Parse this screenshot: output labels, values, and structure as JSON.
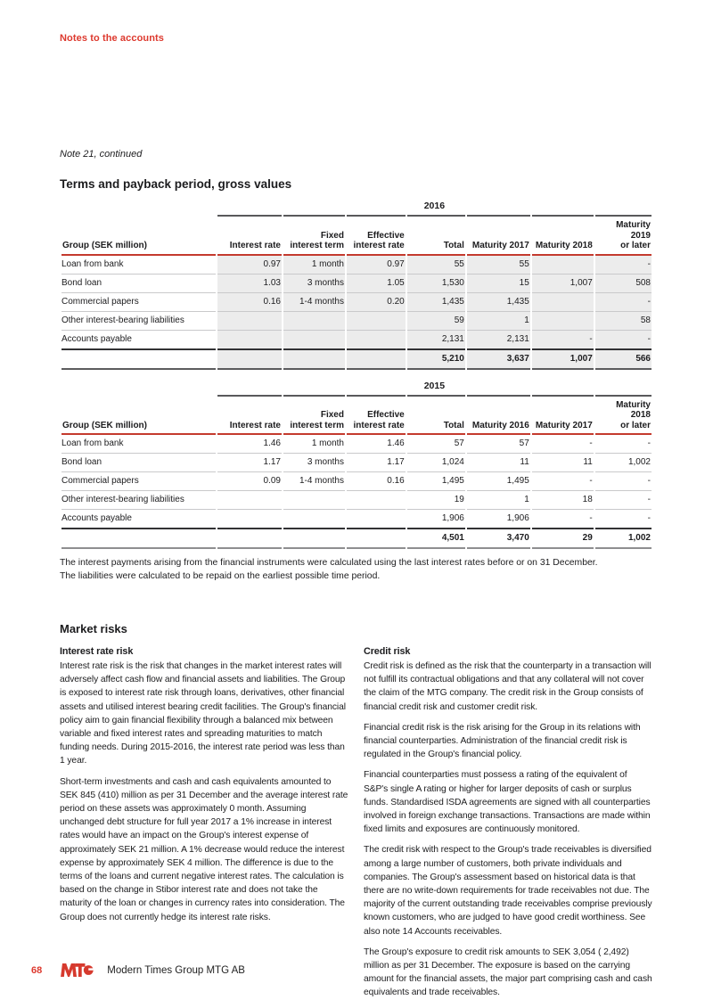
{
  "doc": {
    "header": "Notes to the accounts",
    "note_title": "Note 21, continued",
    "section_title": "Terms and payback period, gross values"
  },
  "tables": [
    {
      "year": "2016",
      "shaded": true,
      "headers": [
        [
          "Group (SEK million)"
        ],
        [
          "Interest rate"
        ],
        [
          "Fixed",
          "interest term"
        ],
        [
          "Effective",
          "interest rate"
        ],
        [
          "Total"
        ],
        [
          "Maturity 2017"
        ],
        [
          "Maturity 2018"
        ],
        [
          "Maturity 2019",
          "or later"
        ]
      ],
      "rows": [
        [
          "Loan from bank",
          "0.97",
          "1 month",
          "0.97",
          "55",
          "55",
          "",
          "-"
        ],
        [
          "Bond loan",
          "1.03",
          "3 months",
          "1.05",
          "1,530",
          "15",
          "1,007",
          "508"
        ],
        [
          "Commercial papers",
          "0.16",
          "1-4 months",
          "0.20",
          "1,435",
          "1,435",
          "",
          "-"
        ],
        [
          "Other interest-bearing liabilities",
          "",
          "",
          "",
          "59",
          "1",
          "",
          "58"
        ],
        [
          "Accounts payable",
          "",
          "",
          "",
          "2,131",
          "2,131",
          "-",
          "-"
        ]
      ],
      "totals": [
        "",
        "",
        "",
        "",
        "5,210",
        "3,637",
        "1,007",
        "566"
      ]
    },
    {
      "year": "2015",
      "shaded": false,
      "headers": [
        [
          "Group (SEK million)"
        ],
        [
          "Interest rate"
        ],
        [
          "Fixed",
          "interest term"
        ],
        [
          "Effective",
          "interest rate"
        ],
        [
          "Total"
        ],
        [
          "Maturity 2016"
        ],
        [
          "Maturity 2017"
        ],
        [
          "Maturity 2018",
          "or later"
        ]
      ],
      "rows": [
        [
          "Loan from bank",
          "1.46",
          "1 month",
          "1.46",
          "57",
          "57",
          "-",
          "-"
        ],
        [
          "Bond loan",
          "1.17",
          "3 months",
          "1.17",
          "1,024",
          "11",
          "11",
          "1,002"
        ],
        [
          "Commercial papers",
          "0.09",
          "1-4 months",
          "0.16",
          "1,495",
          "1,495",
          "-",
          "-"
        ],
        [
          "Other interest-bearing liabilities",
          "",
          "",
          "",
          "19",
          "1",
          "18",
          "-"
        ],
        [
          "Accounts payable",
          "",
          "",
          "",
          "1,906",
          "1,906",
          "-",
          "-"
        ]
      ],
      "totals": [
        "",
        "",
        "",
        "",
        "4,501",
        "3,470",
        "29",
        "1,002"
      ]
    }
  ],
  "table_note": {
    "line1": "The interest payments arising from the financial instruments were calculated using the last interest rates before or on 31 December.",
    "line2": "The liabilities were calculated to be repaid on the earliest possible time period."
  },
  "market": {
    "heading": "Market risks",
    "left": {
      "subheading": "Interest rate risk",
      "paragraphs": [
        "Interest rate risk is the risk that changes in the market interest rates will adversely affect cash flow and financial assets and liabilities. The Group is exposed to interest rate risk through loans, derivatives, other financial assets and utilised interest bearing credit facilities. The Group's financial policy aim to gain financial flexibility through a balanced mix between variable and fixed interest rates and spreading maturities to match funding needs. During 2015-2016, the interest rate period was less than 1 year.",
        "Short-term investments and cash and cash equivalents amounted to SEK 845 (410) million as per 31 December and the average interest rate period on these assets was approximately 0 month. Assuming unchanged debt structure for full year 2017 a 1% increase in interest rates would have an impact on the Group's interest expense of approximately SEK 21 million. A 1% decrease would reduce the interest expense by approximately SEK 4 million. The difference is due to the terms of the loans and current negative interest rates. The calculation is based on the change in Stibor interest rate and does not take the maturity of the loan or changes in currency rates into consideration. The Group does not currently hedge its interest rate risks."
      ]
    },
    "right": {
      "subheading": "Credit risk",
      "paragraphs": [
        "Credit risk is defined as the risk that the counterparty in a transaction will not fulfill its contractual obligations and that any collateral will not cover the claim of the MTG company. The credit risk in the Group consists of financial credit risk and customer credit risk.",
        "Financial credit risk is the risk arising for the Group in its relations with financial counterparties. Administration of the financial credit risk is regulated in the Group's financial policy.",
        "Financial counterparties must possess a rating of the equivalent of S&P's single A rating or higher for larger deposits of cash or surplus funds. Standardised ISDA agreements are signed with all counterparties involved in foreign exchange transactions. Transactions are made within fixed limits and exposures are continuously monitored.",
        "The credit risk with respect to the Group's trade receivables is diversified among a large number of customers, both private individuals and companies. The Group's assessment based on historical data is that there are no write-down requirements for trade receivables not due. The majority of the current outstanding trade receivables comprise previously known customers, who are judged to have good credit worthiness. See also note 14 Accounts receivables.",
        "The Group's exposure to credit risk amounts to SEK 3,054 ( 2,492) million as per 31 December. The exposure is based on the carrying amount for the financial assets, the major part comprising cash and cash equivalents and trade receivables."
      ]
    }
  },
  "footer": {
    "page_number": "68",
    "logo_text": "MTG",
    "company": "Modern Times Group MTG AB"
  },
  "colors": {
    "accent_red": "#dd392e",
    "rule_red": "#c43a2e",
    "rule_dark": "#59595b",
    "shade_gray": "#ececec",
    "separator_gray": "#c9c9cb",
    "text": "#1c1c1e"
  }
}
